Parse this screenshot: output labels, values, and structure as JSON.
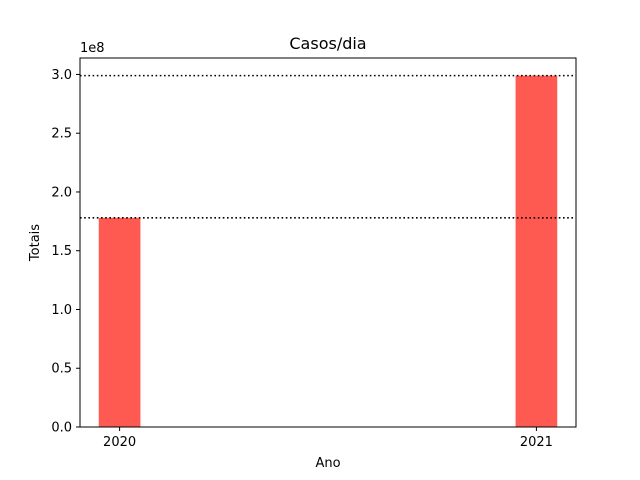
{
  "chart_data": {
    "type": "bar",
    "title": "Casos/dia",
    "xlabel": "Ano",
    "ylabel": "Totais",
    "offset_label": "1e8",
    "categories": [
      "2020",
      "2021"
    ],
    "x": [
      2020,
      2021
    ],
    "values": [
      178000000,
      299000000
    ],
    "xlim": [
      2019.905,
      2021.095
    ],
    "ylim": [
      0,
      314000000
    ],
    "yticks": [
      0,
      50000000,
      100000000,
      150000000,
      200000000,
      250000000,
      300000000
    ],
    "ytick_labels": [
      "0.0",
      "0.5",
      "1.0",
      "1.5",
      "2.0",
      "2.5",
      "3.0"
    ],
    "reference_lines": [
      178000000,
      299000000
    ],
    "reference_line_style": "dotted",
    "bar_color": "#ff5a52",
    "grid": false,
    "legend": "none"
  }
}
